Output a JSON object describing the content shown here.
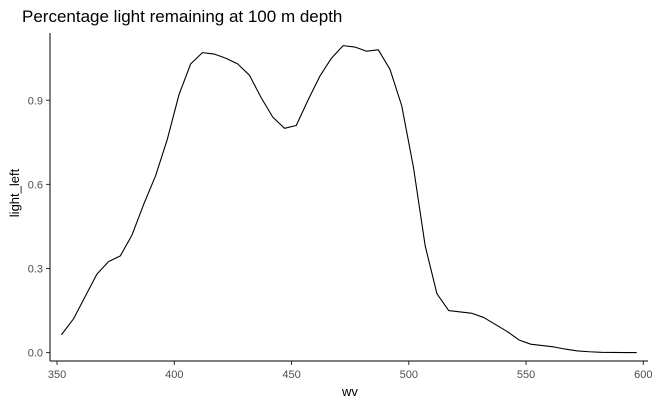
{
  "chart_data": {
    "type": "line",
    "title": "Percentage light remaining at 100 m depth",
    "xlabel": "wv",
    "ylabel": "light_left",
    "xlim": [
      347,
      602
    ],
    "ylim": [
      -0.03,
      1.14
    ],
    "x_ticks": [
      350,
      400,
      450,
      500,
      550,
      600
    ],
    "y_ticks": [
      0.0,
      0.3,
      0.6,
      0.9
    ],
    "x_tick_labels": [
      "350",
      "400",
      "450",
      "500",
      "550",
      "600"
    ],
    "y_tick_labels": [
      "0.0",
      "0.3",
      "0.6",
      "0.9"
    ],
    "grid": false,
    "series": [
      {
        "x": [
          352,
          357,
          362,
          367,
          372,
          377,
          382,
          387,
          392,
          397,
          402,
          407,
          412,
          417,
          422,
          427,
          432,
          437,
          442,
          447,
          452,
          457,
          462,
          467,
          472,
          477,
          482,
          487,
          492,
          497,
          502,
          507,
          512,
          517,
          522,
          527,
          532,
          537,
          542,
          547,
          552,
          557,
          562,
          567,
          572,
          577,
          582,
          587,
          592,
          597
        ],
        "y": [
          0.065,
          0.12,
          0.2,
          0.28,
          0.325,
          0.345,
          0.42,
          0.53,
          0.63,
          0.76,
          0.92,
          1.03,
          1.07,
          1.065,
          1.05,
          1.03,
          0.99,
          0.91,
          0.84,
          0.8,
          0.81,
          0.9,
          0.985,
          1.05,
          1.095,
          1.09,
          1.075,
          1.08,
          1.01,
          0.88,
          0.66,
          0.38,
          0.21,
          0.15,
          0.145,
          0.14,
          0.125,
          0.1,
          0.075,
          0.045,
          0.03,
          0.025,
          0.02,
          0.012,
          0.006,
          0.003,
          0.001,
          0.0005,
          0.0002,
          0.0001
        ]
      }
    ]
  },
  "colors": {
    "line": "#000000",
    "axis": "#000000",
    "tick_text": "#4d4d4d",
    "background": "#ffffff"
  }
}
